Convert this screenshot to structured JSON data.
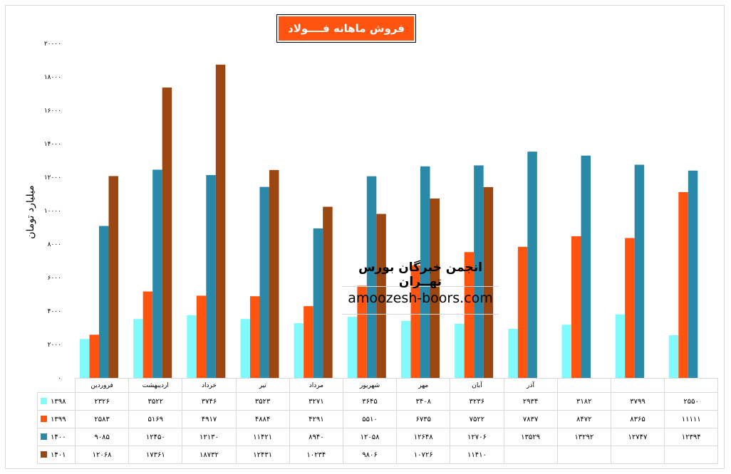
{
  "chart_data": {
    "type": "bar",
    "title": "فروش ماهانه فــــولاد",
    "ylabel": "میلیارد تومان",
    "xlabel": "",
    "ylim": [
      0,
      20000
    ],
    "yticks": [
      0,
      2000,
      4000,
      6000,
      8000,
      10000,
      12000,
      14000,
      16000,
      18000,
      20000
    ],
    "grid": false,
    "legend": "data-table-bottom",
    "categories": [
      "فروردین",
      "اردیبهشت",
      "خرداد",
      "تیر",
      "مرداد",
      "شهریور",
      "مهر",
      "آبان",
      "آذر",
      "",
      "",
      ""
    ],
    "series": [
      {
        "name": "۱۳۹۸",
        "color": "#80fafc",
        "values": [
          2326,
          3522,
          3746,
          3523,
          3271,
          3645,
          3408,
          3236,
          2934,
          3182,
          3799,
          2550
        ]
      },
      {
        "name": "۱۳۹۹",
        "color": "#ff5410",
        "values": [
          2583,
          5169,
          4917,
          4884,
          4291,
          5510,
          6735,
          7522,
          7837,
          8472,
          8365,
          11111
        ]
      },
      {
        "name": "۱۴۰۰",
        "color": "#2a89a8",
        "values": [
          9085,
          12450,
          12130,
          11421,
          8940,
          12058,
          12648,
          12706,
          13529,
          13292,
          12747,
          12394
        ]
      },
      {
        "name": "۱۴۰۱",
        "color": "#9c4712",
        "values": [
          12068,
          17361,
          18732,
          12431,
          10234,
          9806,
          10726,
          11410,
          null,
          null,
          null,
          null
        ]
      }
    ]
  },
  "watermark": {
    "name": "انجمن خبرگان بورس تهــران",
    "url": "amoozesh-boors.com"
  }
}
